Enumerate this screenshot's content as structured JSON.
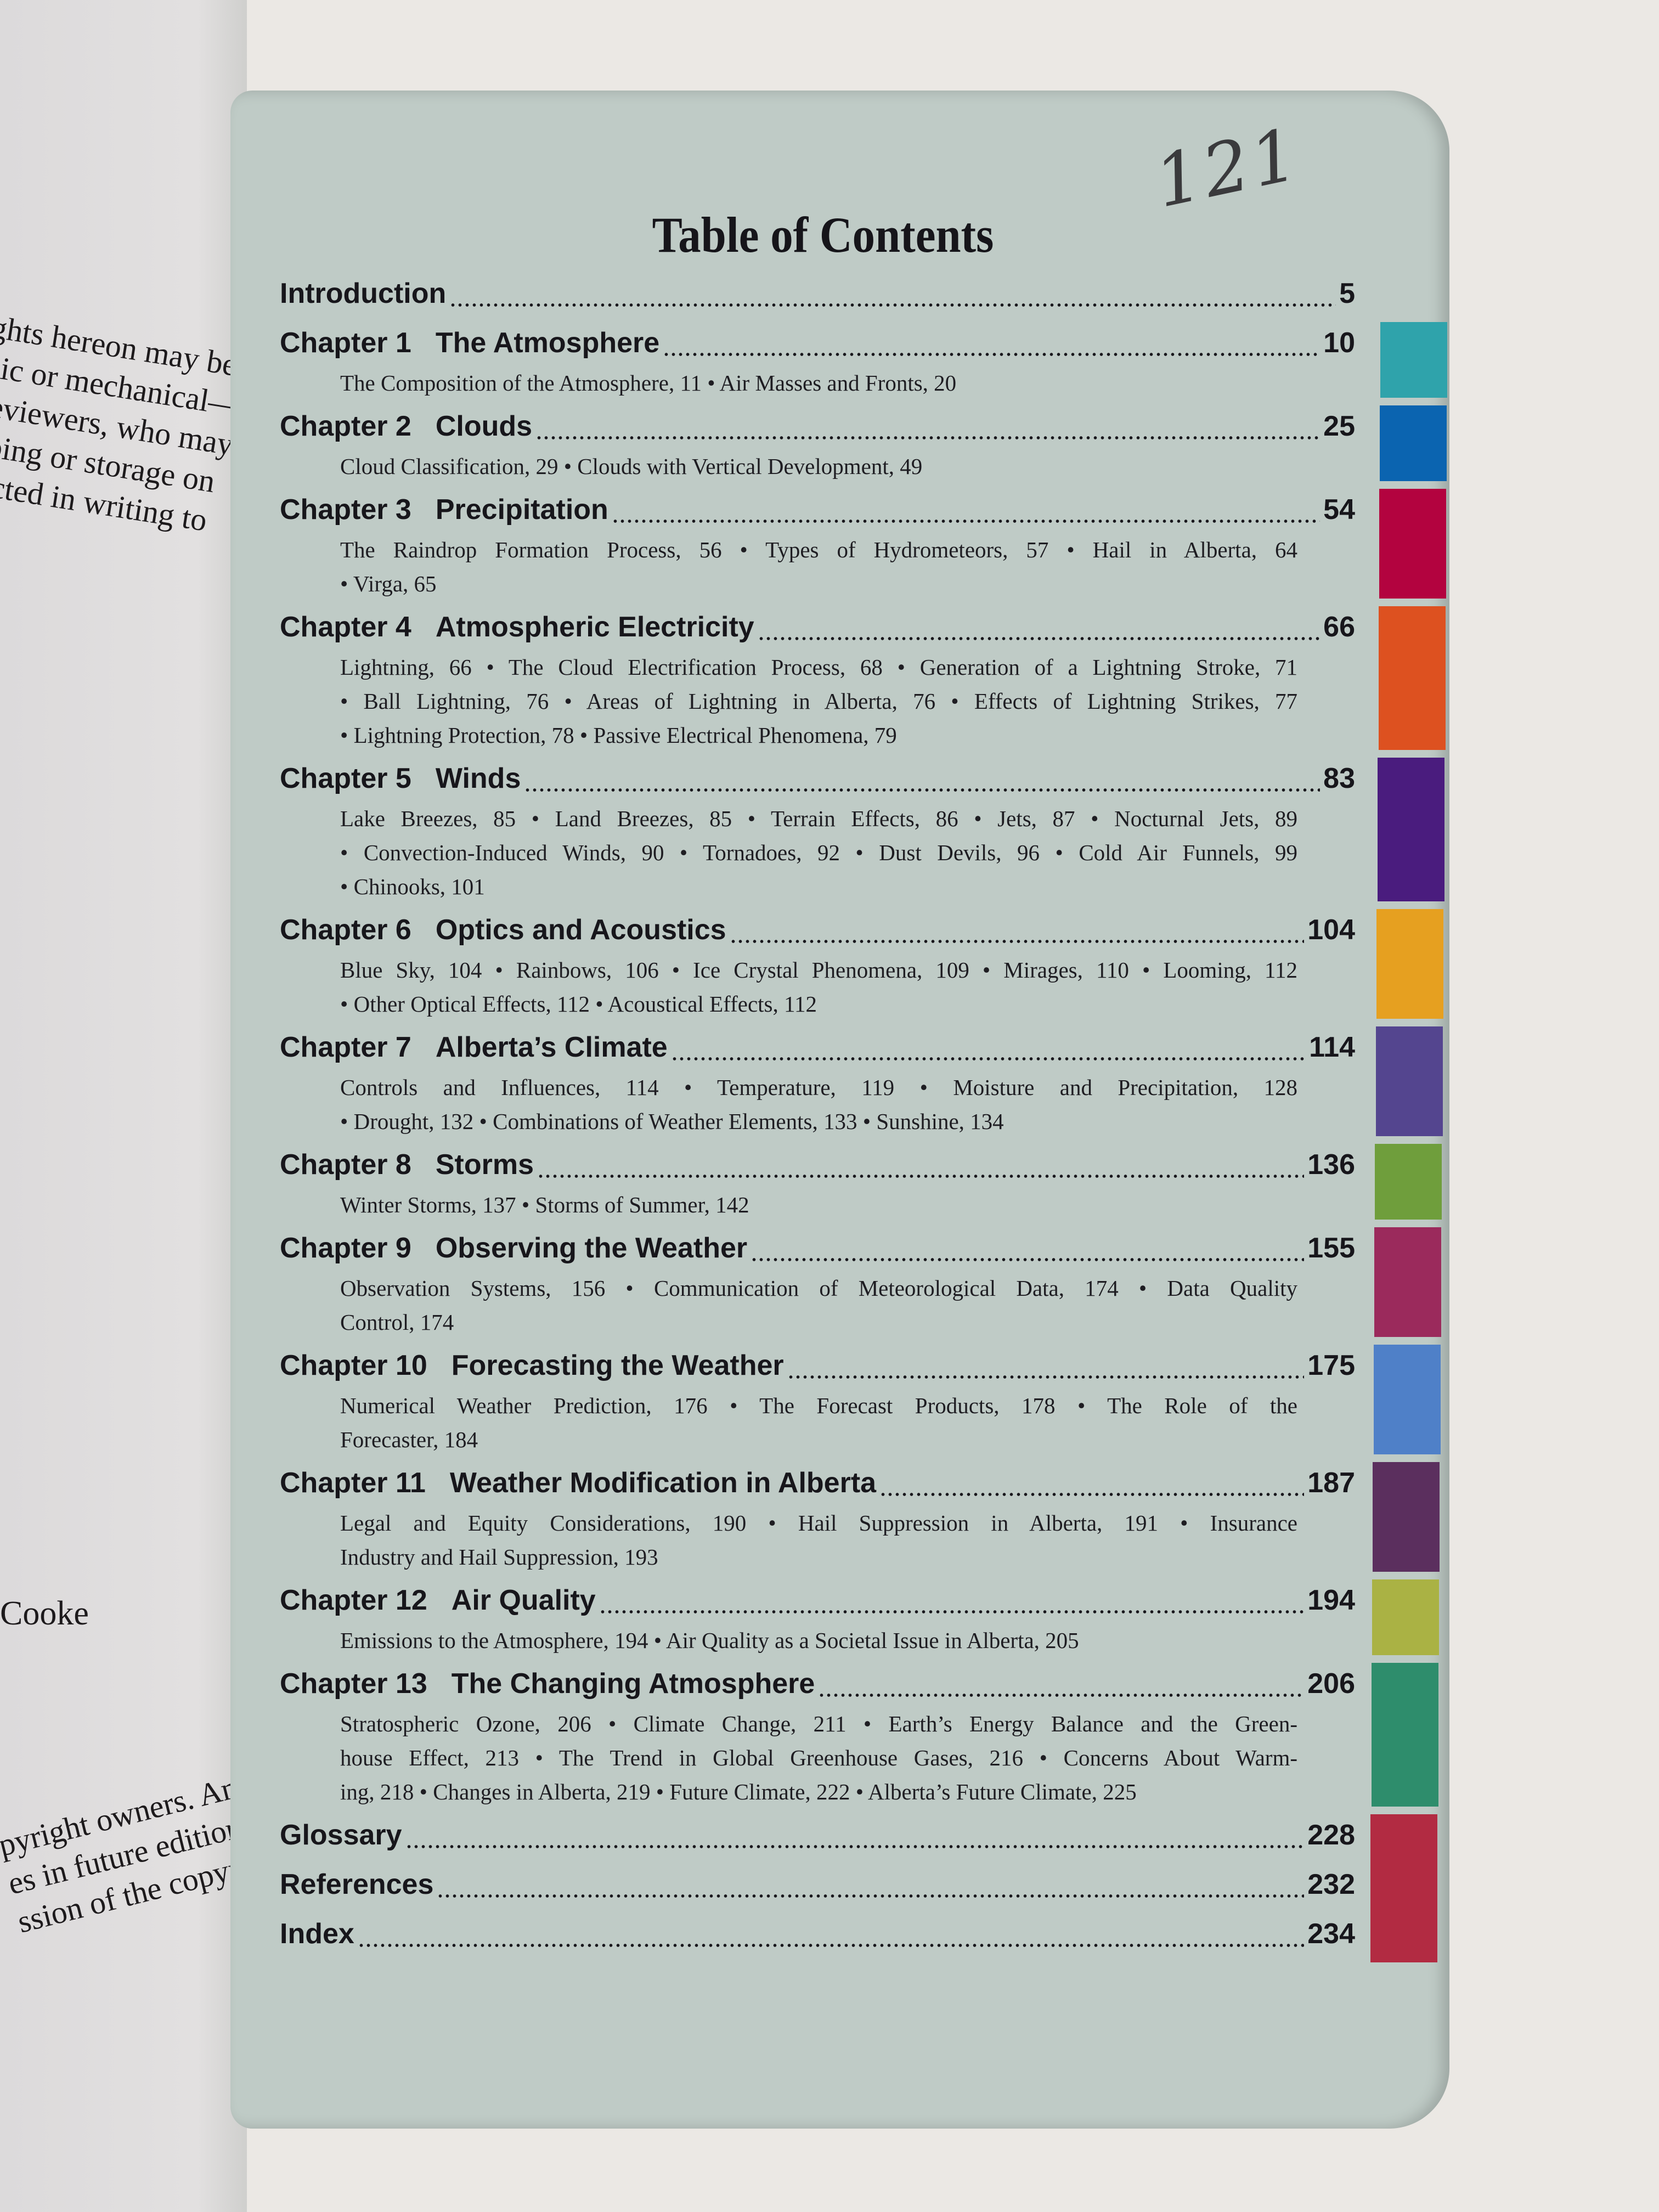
{
  "left_page": {
    "top_lines": [
      "ghts hereon may be",
      "nic or mechanical—",
      "reviewers, who may",
      "aping or storage on",
      "rected in writing to"
    ],
    "name": "Cooke",
    "bottom_lines": [
      "pyright owners. An",
      "es in future editions",
      "ssion of the copyright"
    ]
  },
  "handwritten_note": "121",
  "title": "Table of Contents",
  "entries": [
    {
      "chapter": "",
      "title": "Introduction",
      "page": "5",
      "sub": []
    },
    {
      "chapter": "Chapter 1",
      "title": "The Atmosphere",
      "page": "10",
      "tab_color": "#2fa3ab",
      "sub": [
        "The Composition of the Atmosphere, 11 • Air Masses and Fronts, 20"
      ]
    },
    {
      "chapter": "Chapter 2",
      "title": "Clouds",
      "page": "25",
      "tab_color": "#0b64b0",
      "sub": [
        "Cloud Classification, 29 • Clouds with Vertical Development, 49"
      ]
    },
    {
      "chapter": "Chapter 3",
      "title": "Precipitation",
      "page": "54",
      "tab_color": "#b3033f",
      "sub": [
        "The Raindrop Formation Process, 56 • Types of Hydrometeors, 57 • Hail in Alberta, 64",
        "• Virga, 65"
      ]
    },
    {
      "chapter": "Chapter 4",
      "title": "Atmospheric Electricity",
      "page": "66",
      "tab_color": "#dd5120",
      "sub": [
        "Lightning, 66 • The Cloud Electrification Process, 68 • Generation of a Lightning Stroke, 71",
        "• Ball Lightning, 76 • Areas of Lightning in Alberta, 76 • Effects of Lightning Strikes, 77",
        "• Lightning Protection, 78 • Passive Electrical Phenomena, 79"
      ]
    },
    {
      "chapter": "Chapter 5",
      "title": "Winds",
      "page": "83",
      "tab_color": "#4a1c7e",
      "sub": [
        "Lake Breezes, 85 • Land Breezes, 85 • Terrain Effects, 86 • Jets, 87 • Nocturnal Jets, 89",
        "• Convection-Induced Winds, 90 • Tornadoes, 92 • Dust Devils, 96 • Cold Air Funnels, 99",
        "• Chinooks, 101"
      ]
    },
    {
      "chapter": "Chapter 6",
      "title": "Optics and Acoustics",
      "page": "104",
      "tab_color": "#e6a020",
      "sub": [
        "Blue Sky, 104 • Rainbows, 106 • Ice Crystal Phenomena, 109 • Mirages, 110 • Looming, 112",
        "• Other Optical Effects, 112 • Acoustical Effects, 112"
      ]
    },
    {
      "chapter": "Chapter 7",
      "title": "Alberta’s Climate",
      "page": "114",
      "tab_color": "#54458f",
      "sub": [
        "Controls and Influences, 114 • Temperature, 119 • Moisture and Precipitation, 128",
        "• Drought, 132 • Combinations of Weather Elements, 133 • Sunshine, 134"
      ]
    },
    {
      "chapter": "Chapter 8",
      "title": "Storms",
      "page": "136",
      "tab_color": "#6f9e3c",
      "sub": [
        "Winter Storms, 137 • Storms of Summer, 142"
      ]
    },
    {
      "chapter": "Chapter 9",
      "title": "Observing the Weather",
      "page": "155",
      "tab_color": "#9b2a5c",
      "sub": [
        "Observation Systems, 156 • Communication of Meteorological Data, 174 • Data Quality",
        "Control, 174"
      ]
    },
    {
      "chapter": "Chapter 10",
      "title": "Forecasting the Weather",
      "page": "175",
      "tab_color": "#4f80c8",
      "sub": [
        "Numerical Weather Prediction, 176 • The Forecast Products, 178 • The Role of the",
        "Forecaster, 184"
      ]
    },
    {
      "chapter": "Chapter 11",
      "title": "Weather Modification in Alberta",
      "page": "187",
      "tab_color": "#5b2f5e",
      "sub": [
        "Legal and Equity Considerations, 190 • Hail Suppression in Alberta, 191 • Insurance",
        "Industry and Hail Suppression, 193"
      ]
    },
    {
      "chapter": "Chapter 12",
      "title": "Air Quality",
      "page": "194",
      "tab_color": "#aab244",
      "sub": [
        "Emissions to the Atmosphere, 194 • Air Quality as a Societal Issue in Alberta, 205"
      ]
    },
    {
      "chapter": "Chapter 13",
      "title": "The Changing Atmosphere",
      "page": "206",
      "tab_color": "#2e8d6c",
      "sub": [
        "Stratospheric Ozone, 206 • Climate Change, 211 • Earth’s Energy Balance and the Green-",
        "house Effect, 213 • The Trend in Global Greenhouse Gases, 216 • Concerns About Warm-",
        "ing, 218 • Changes in Alberta, 219 • Future Climate, 222 • Alberta’s Future Climate, 225"
      ]
    },
    {
      "chapter": "",
      "title": "Glossary",
      "page": "228",
      "tab_color": "#b22b42",
      "sub": []
    },
    {
      "chapter": "",
      "title": "References",
      "page": "232",
      "sub": []
    },
    {
      "chapter": "",
      "title": "Index",
      "page": "234",
      "sub": []
    }
  ]
}
